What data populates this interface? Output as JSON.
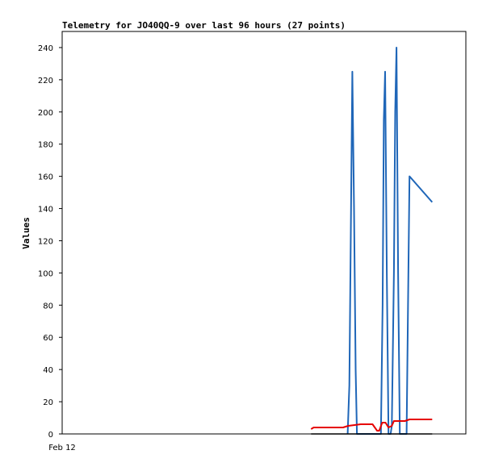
{
  "chart_data": {
    "type": "line",
    "title": "Telemetry for JO40QQ-9 over last 96 hours (27 points)",
    "xlabel": "",
    "ylabel": "Values",
    "x_tick_labels": [
      "Feb 12"
    ],
    "ylim": [
      0,
      250
    ],
    "yticks": [
      0,
      20,
      40,
      60,
      80,
      100,
      120,
      140,
      160,
      180,
      200,
      220,
      240
    ],
    "grid": false,
    "legend": "none",
    "x_unit": "hours",
    "xlim": [
      0,
      96
    ],
    "series": [
      {
        "color": "#1f66b8",
        "points": [
          [
            67.9,
            0
          ],
          [
            68.3,
            30
          ],
          [
            68.7,
            140
          ],
          [
            69.0,
            225
          ],
          [
            69.4,
            140
          ],
          [
            69.8,
            40
          ],
          [
            70.1,
            0
          ],
          [
            75.8,
            0
          ],
          [
            76.2,
            80
          ],
          [
            76.5,
            195
          ],
          [
            76.8,
            225
          ],
          [
            77.2,
            100
          ],
          [
            77.6,
            0
          ],
          [
            78.1,
            0
          ],
          [
            78.4,
            5
          ],
          [
            78.9,
            100
          ],
          [
            79.2,
            200
          ],
          [
            79.5,
            240
          ],
          [
            79.9,
            100
          ],
          [
            80.3,
            0
          ],
          [
            81.9,
            0
          ],
          [
            82.3,
            90
          ],
          [
            82.6,
            160
          ],
          [
            88.0,
            144
          ]
        ]
      },
      {
        "color": "#e60000",
        "points": [
          [
            59.2,
            3
          ],
          [
            59.8,
            4
          ],
          [
            66.8,
            4
          ],
          [
            68.0,
            5
          ],
          [
            71.0,
            6
          ],
          [
            73.8,
            6
          ],
          [
            74.9,
            2
          ],
          [
            75.4,
            2
          ],
          [
            76.1,
            7
          ],
          [
            76.9,
            7
          ],
          [
            77.6,
            4
          ],
          [
            78.4,
            5
          ],
          [
            78.9,
            8
          ],
          [
            81.5,
            8
          ],
          [
            82.6,
            9
          ],
          [
            88.0,
            9
          ]
        ]
      },
      {
        "color": "#000000",
        "points": [
          [
            59.2,
            0
          ],
          [
            88.0,
            0
          ]
        ]
      }
    ]
  }
}
